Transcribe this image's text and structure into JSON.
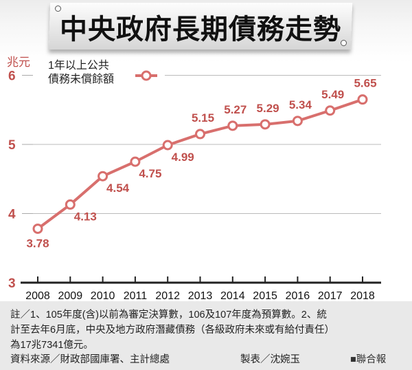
{
  "chart_data": {
    "type": "line",
    "title": "中央政府長期債務走勢",
    "ylabel": "兆元",
    "ylim": [
      3,
      6
    ],
    "yticks": [
      "3",
      "4",
      "5",
      "6"
    ],
    "categories": [
      "2008",
      "2009",
      "2010",
      "2011",
      "2012",
      "2013",
      "2014",
      "2015",
      "2016",
      "2017",
      "2018"
    ],
    "series": [
      {
        "name": "1年以上公共債務未償餘額",
        "values": [
          3.78,
          4.13,
          4.54,
          4.75,
          4.99,
          5.15,
          5.27,
          5.29,
          5.34,
          5.49,
          5.65
        ],
        "labels": [
          "3.78",
          "4.13",
          "4.54",
          "4.75",
          "4.99",
          "5.15",
          "5.27",
          "5.29",
          "5.34",
          "5.49",
          "5.65"
        ]
      }
    ],
    "legend": {
      "line1": "1年以上公共",
      "line2": "債務未償餘額",
      "position": "top-left"
    },
    "grid": true,
    "colors": {
      "line": "#d86f6d",
      "label": "#c0504d"
    }
  },
  "footer": {
    "note1": "註／1、105年度(含)以前為審定決算數，106及107年度為預算數。2、統",
    "note2": "計至去年6月底，中央及地方政府潛藏債務（各級政府未來或有給付責任）",
    "note3": "為17兆7341億元。",
    "source": "資料來源／財政部國庫署、主計總處",
    "maker": "製表／沈婉玉",
    "publisher": "■聯合報"
  }
}
